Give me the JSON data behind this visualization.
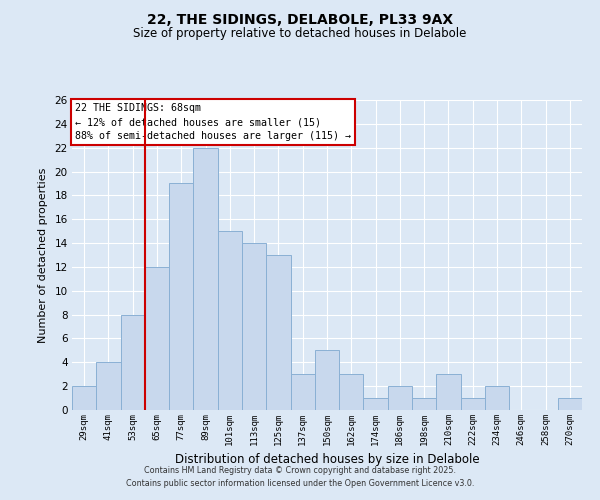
{
  "title": "22, THE SIDINGS, DELABOLE, PL33 9AX",
  "subtitle": "Size of property relative to detached houses in Delabole",
  "xlabel": "Distribution of detached houses by size in Delabole",
  "ylabel": "Number of detached properties",
  "categories": [
    "29sqm",
    "41sqm",
    "53sqm",
    "65sqm",
    "77sqm",
    "89sqm",
    "101sqm",
    "113sqm",
    "125sqm",
    "137sqm",
    "150sqm",
    "162sqm",
    "174sqm",
    "186sqm",
    "198sqm",
    "210sqm",
    "222sqm",
    "234sqm",
    "246sqm",
    "258sqm",
    "270sqm"
  ],
  "values": [
    2,
    4,
    8,
    12,
    19,
    22,
    15,
    14,
    13,
    3,
    5,
    3,
    1,
    2,
    1,
    3,
    1,
    2,
    0,
    0,
    1
  ],
  "bar_color": "#c8d8ed",
  "bar_edge_color": "#8ab0d4",
  "vline_index": 3,
  "vline_color": "#cc0000",
  "ylim": [
    0,
    26
  ],
  "yticks": [
    0,
    2,
    4,
    6,
    8,
    10,
    12,
    14,
    16,
    18,
    20,
    22,
    24,
    26
  ],
  "annotation_title": "22 THE SIDINGS: 68sqm",
  "annotation_line1": "← 12% of detached houses are smaller (15)",
  "annotation_line2": "88% of semi-detached houses are larger (115) →",
  "annotation_box_color": "#ffffff",
  "annotation_box_edge": "#cc0000",
  "background_color": "#dce8f5",
  "grid_color": "#ffffff",
  "footer_line1": "Contains HM Land Registry data © Crown copyright and database right 2025.",
  "footer_line2": "Contains public sector information licensed under the Open Government Licence v3.0."
}
